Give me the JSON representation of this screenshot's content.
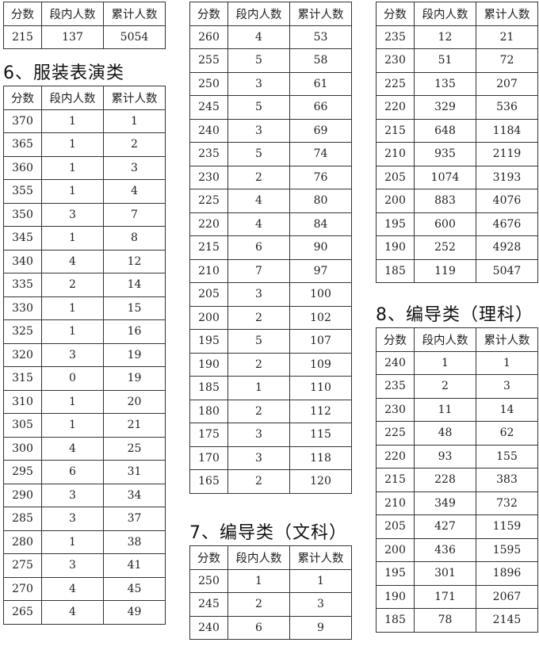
{
  "headers": [
    "分数",
    "段内人数",
    "累计人数"
  ],
  "sections": [
    {
      "title": "",
      "rows": [
        [
          "215",
          "137",
          "5054"
        ]
      ]
    },
    {
      "title": "6、服装表演类",
      "rows": [
        [
          "370",
          "1",
          "1"
        ],
        [
          "365",
          "1",
          "2"
        ],
        [
          "360",
          "1",
          "3"
        ],
        [
          "355",
          "1",
          "4"
        ],
        [
          "350",
          "3",
          "7"
        ],
        [
          "345",
          "1",
          "8"
        ],
        [
          "340",
          "4",
          "12"
        ],
        [
          "335",
          "2",
          "14"
        ],
        [
          "330",
          "1",
          "15"
        ],
        [
          "325",
          "1",
          "16"
        ],
        [
          "320",
          "3",
          "19"
        ],
        [
          "315",
          "0",
          "19"
        ],
        [
          "310",
          "1",
          "20"
        ],
        [
          "305",
          "1",
          "21"
        ],
        [
          "300",
          "4",
          "25"
        ],
        [
          "295",
          "6",
          "31"
        ],
        [
          "290",
          "3",
          "34"
        ],
        [
          "285",
          "3",
          "37"
        ],
        [
          "280",
          "1",
          "38"
        ],
        [
          "275",
          "3",
          "41"
        ],
        [
          "270",
          "4",
          "45"
        ],
        [
          "265",
          "4",
          "49"
        ]
      ]
    },
    {
      "title": "",
      "rows": [
        [
          "260",
          "4",
          "53"
        ],
        [
          "255",
          "5",
          "58"
        ],
        [
          "250",
          "3",
          "61"
        ],
        [
          "245",
          "5",
          "66"
        ],
        [
          "240",
          "3",
          "69"
        ],
        [
          "235",
          "5",
          "74"
        ],
        [
          "230",
          "2",
          "76"
        ],
        [
          "225",
          "4",
          "80"
        ],
        [
          "220",
          "4",
          "84"
        ],
        [
          "215",
          "6",
          "90"
        ],
        [
          "210",
          "7",
          "97"
        ],
        [
          "205",
          "3",
          "100"
        ],
        [
          "200",
          "2",
          "102"
        ],
        [
          "195",
          "5",
          "107"
        ],
        [
          "190",
          "2",
          "109"
        ],
        [
          "185",
          "1",
          "110"
        ],
        [
          "180",
          "2",
          "112"
        ],
        [
          "175",
          "3",
          "115"
        ],
        [
          "170",
          "3",
          "118"
        ],
        [
          "165",
          "2",
          "120"
        ]
      ]
    },
    {
      "title": "7、编导类（文科）",
      "rows": [
        [
          "250",
          "1",
          "1"
        ],
        [
          "245",
          "2",
          "3"
        ],
        [
          "240",
          "6",
          "9"
        ]
      ]
    },
    {
      "title": "",
      "rows": [
        [
          "235",
          "12",
          "21"
        ],
        [
          "230",
          "51",
          "72"
        ],
        [
          "225",
          "135",
          "207"
        ],
        [
          "220",
          "329",
          "536"
        ],
        [
          "215",
          "648",
          "1184"
        ],
        [
          "210",
          "935",
          "2119"
        ],
        [
          "205",
          "1074",
          "3193"
        ],
        [
          "200",
          "883",
          "4076"
        ],
        [
          "195",
          "600",
          "4676"
        ],
        [
          "190",
          "252",
          "4928"
        ],
        [
          "185",
          "119",
          "5047"
        ]
      ]
    },
    {
      "title": "8、编导类（理科）",
      "rows": [
        [
          "240",
          "1",
          "1"
        ],
        [
          "235",
          "2",
          "3"
        ],
        [
          "230",
          "11",
          "14"
        ],
        [
          "225",
          "48",
          "62"
        ],
        [
          "220",
          "93",
          "155"
        ],
        [
          "215",
          "228",
          "383"
        ],
        [
          "210",
          "349",
          "732"
        ],
        [
          "205",
          "427",
          "1159"
        ],
        [
          "200",
          "436",
          "1595"
        ],
        [
          "195",
          "301",
          "1896"
        ],
        [
          "190",
          "171",
          "2067"
        ],
        [
          "185",
          "78",
          "2145"
        ]
      ]
    }
  ]
}
